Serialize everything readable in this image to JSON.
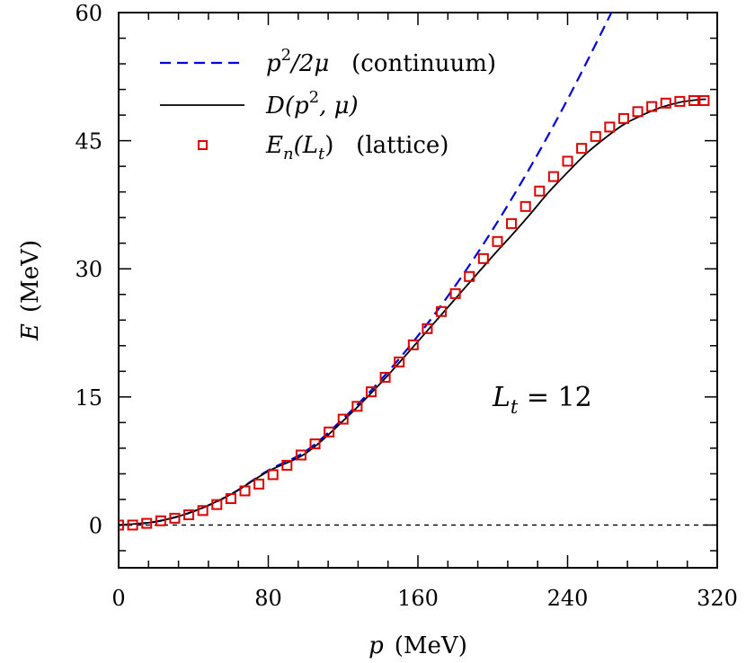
{
  "chart_data": {
    "type": "line",
    "xlabel": {
      "var": "p",
      "unit": "(MeV)"
    },
    "ylabel": {
      "var": "E",
      "unit": "(MeV)"
    },
    "xlim": [
      0,
      320
    ],
    "ylim": [
      -5,
      60
    ],
    "x_ticks": [
      0,
      80,
      160,
      240,
      320
    ],
    "y_ticks": [
      0,
      15,
      30,
      45,
      60
    ],
    "grid": false,
    "legend_position": "top-left",
    "colors": {
      "continuum": "#0000dd",
      "dispersion": "#000000",
      "lattice": "#dd0000",
      "zero_line": "#000000"
    },
    "annotation": {
      "var": "L",
      "sub": "t",
      "rest": " = 12"
    },
    "series": [
      {
        "name": "p²/2μ (continuum)",
        "legend": {
          "pre": "p",
          "sup": "2",
          "mid": "/2μ",
          "post": "   (continuum)"
        },
        "style": "dashed",
        "x": [
          0,
          20,
          40,
          60,
          80,
          100,
          120,
          140,
          160,
          180,
          200,
          220,
          240,
          260,
          270.5
        ],
        "y": [
          0,
          0.4,
          1.6,
          3.6,
          6.4,
          8.65,
          12.46,
          16.96,
          22.15,
          28.03,
          34.61,
          41.88,
          49.84,
          58.49,
          63.2
        ]
      },
      {
        "name": "D(p², μ)",
        "legend": {
          "pre": "D(p",
          "sup": "2",
          "mid": ", μ)",
          "post": ""
        },
        "style": "solid",
        "x": [
          0,
          20,
          40,
          60,
          80,
          100,
          120,
          140,
          160,
          180,
          200,
          210,
          220,
          230,
          240,
          250,
          260,
          270,
          280,
          290,
          300,
          310,
          314
        ],
        "y": [
          0,
          0.4,
          1.6,
          3.6,
          6.3,
          8.4,
          12.2,
          16.6,
          21.5,
          26.5,
          31.5,
          33.9,
          36.4,
          39.0,
          41.3,
          43.5,
          45.3,
          46.9,
          48.0,
          48.9,
          49.5,
          49.8,
          49.85
        ]
      },
      {
        "name": "E_n(L_t) (lattice)",
        "legend": {
          "pre": "E",
          "sub": "n",
          "mid": "(L",
          "sub2": "t",
          "post": ")   (lattice)"
        },
        "style": "markers",
        "x": [
          0,
          7.5,
          15,
          22.5,
          30,
          37.5,
          45,
          52.5,
          60,
          67.5,
          75,
          82.5,
          90,
          97.5,
          105,
          112.5,
          120,
          127.5,
          135,
          142.5,
          150,
          157.5,
          165,
          172.5,
          180,
          187.5,
          195,
          202.5,
          210,
          217.5,
          225,
          232.5,
          240,
          247.5,
          255,
          262.5,
          270,
          277.5,
          285,
          292.5,
          300,
          307.5,
          313
        ],
        "y": [
          0,
          0,
          0.2,
          0.5,
          0.8,
          1.2,
          1.7,
          2.4,
          3.1,
          4.0,
          4.8,
          5.9,
          7.0,
          8.2,
          9.5,
          10.9,
          12.4,
          13.9,
          15.6,
          17.3,
          19.1,
          21.1,
          23.0,
          25.0,
          27.1,
          29.1,
          31.2,
          33.2,
          35.3,
          37.3,
          39.1,
          40.8,
          42.6,
          44.1,
          45.5,
          46.6,
          47.6,
          48.4,
          49.0,
          49.4,
          49.6,
          49.7,
          49.7
        ]
      }
    ]
  }
}
